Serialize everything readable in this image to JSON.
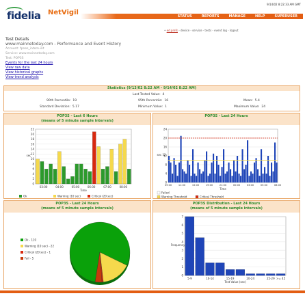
{
  "header": {
    "timestamp": "9/14/02 8:22:33 AM GMT",
    "logo_text": "fidelia",
    "brand": "NetVigil",
    "nav": [
      "STATUS",
      "REPORTS",
      "MANAGE",
      "HELP",
      "SUPERUSER"
    ],
    "breadcrumb": {
      "prefix": "•",
      "current": "ed.prefs",
      "rest": " - device - service - tests - event log - logout"
    }
  },
  "page": {
    "title": "Test Details",
    "subtitle": "www.mainnetoday.com - Performance and Event History",
    "account": "Account: fpnes_intern-int",
    "service": "Service: www.mainnetoday.com",
    "test": "Test: POP3S",
    "links": [
      "Events for the last 24 hours",
      "View raw data",
      "View historical graphs",
      "View trend analysis"
    ]
  },
  "stats": {
    "title": "Statistics (9/13/02 8:22 AM - 9/14/02 8:22 AM)",
    "last_tested_label": "Last Tested Value:",
    "last_tested": "4",
    "p90_label": "90th Percentile:",
    "p90": "19",
    "p95_label": "95th Percentile:",
    "p95": "16",
    "mean_label": "Mean:",
    "mean": "5.4",
    "std_label": "Standard Deviation:",
    "std": "5.17",
    "min_label": "Minimum Value:",
    "min": "1",
    "max_label": "Maximum Value:",
    "max": "24"
  },
  "chart_data": [
    {
      "type": "bar",
      "title": "POP3S - Last 6 Hours",
      "subtitle": "(means of 5 minute sample intervals)",
      "xlabel": "Time",
      "ylabel": "sec",
      "ylim": [
        0,
        22
      ],
      "yticks": [
        "0",
        "2",
        "4",
        "6",
        "8",
        "10",
        "12",
        "14",
        "16",
        "18",
        "20",
        "22"
      ],
      "xticks": [
        "03:00",
        "04:00",
        "05:00",
        "06:00",
        "07:00",
        "08:00"
      ],
      "values": [
        10,
        9,
        6,
        8,
        6,
        13,
        7,
        2,
        3,
        8,
        8,
        6,
        5,
        21,
        15,
        6,
        7,
        14,
        5,
        16,
        18,
        6
      ],
      "colors": [
        "#f5d94c",
        "#2c9a2c",
        "#2c9a2c",
        "#2c9a2c",
        "#2c9a2c",
        "#f5d94c",
        "#2c9a2c",
        "#2c9a2c",
        "#2c9a2c",
        "#2c9a2c",
        "#2c9a2c",
        "#2c9a2c",
        "#2c9a2c",
        "#d8290f",
        "#f5d94c",
        "#2c9a2c",
        "#2c9a2c",
        "#f5d94c",
        "#2c9a2c",
        "#f5d94c",
        "#f5d94c",
        "#2c9a2c"
      ],
      "legend": [
        {
          "label": "Ok",
          "color": "#2c9a2c"
        },
        {
          "label": "Warning (10 sec)",
          "color": "#f5d94c"
        },
        {
          "label": "Critical (20 sec)",
          "color": "#d8290f"
        }
      ]
    },
    {
      "type": "bar",
      "title": "POP3S - Last 24 Hours",
      "xlabel": "Time",
      "ylabel": "sec 12",
      "ylim": [
        0,
        24
      ],
      "yticks": [
        "0",
        "4",
        "8",
        "12",
        "16",
        "20",
        "24"
      ],
      "xticks": [
        "09:00",
        "11:00",
        "15:00",
        "19:00",
        "21:00",
        "00:00",
        "03:00",
        "05:00",
        "08:00"
      ],
      "warning": 10,
      "critical": 20,
      "values": [
        12,
        9,
        4,
        11,
        8,
        3,
        9,
        21,
        6,
        5,
        4,
        10,
        8,
        3,
        15,
        4,
        3,
        9,
        6,
        4,
        5,
        10,
        14,
        3,
        4,
        9,
        13,
        4,
        12,
        8,
        3,
        7,
        15,
        4,
        5,
        9,
        6,
        3,
        10,
        5,
        12,
        4,
        3,
        15,
        6,
        8,
        19,
        3,
        5,
        4,
        9,
        11,
        6,
        3,
        15,
        4,
        7,
        4,
        12,
        3,
        9,
        5,
        18,
        9
      ],
      "legend": [
        {
          "label": "Failed",
          "color": "#ffffff"
        },
        {
          "label": "Warning Threshold",
          "color": "#f5d94c"
        },
        {
          "label": "Critical Threshold",
          "color": "#d8290f"
        }
      ]
    },
    {
      "type": "pie",
      "title": "POP3S - Last 24 Hours",
      "subtitle": "(means of 5 minute sample intervals)",
      "slices": [
        {
          "label": "Ok - 110",
          "value": 110,
          "color": "#0aa10a"
        },
        {
          "label": "Warning (10 sec) - 22",
          "value": 22,
          "color": "#f5d94c"
        },
        {
          "label": "Critical (20 sec) - 1",
          "value": 1,
          "color": "#d8290f"
        },
        {
          "label": "Fail - 5",
          "value": 5,
          "color": "#c73a0c"
        }
      ]
    },
    {
      "type": "bar",
      "title": "POP3S Distribution - Last 24 Hours",
      "subtitle": "(means of 5 minute sample intervals)",
      "xlabel": "Test Value (sec)",
      "ylabel": "Frequency",
      "ylim": [
        0,
        7
      ],
      "yticks": [
        "0",
        "1",
        "2",
        "3",
        "4",
        "5",
        "6",
        "7"
      ],
      "xticks": [
        "5-9",
        "10-14",
        "15-19",
        "20-24",
        "25-29",
        ">= 45"
      ],
      "values": [
        7,
        4.5,
        1.5,
        1.5,
        0.7,
        0.7,
        0.2,
        0.2,
        0.2,
        0.2
      ],
      "color": "#1f45b8"
    }
  ]
}
